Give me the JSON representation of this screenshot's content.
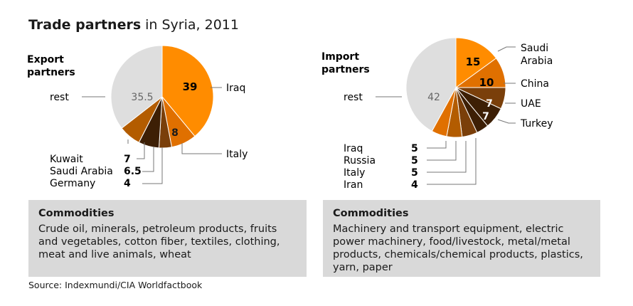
{
  "title": {
    "bold": "Trade partners",
    "light": "in Syria, 2011"
  },
  "colors": {
    "rest": "#dedede",
    "orange": "#ff8c00",
    "deep_orange": "#e07000",
    "brown": "#b35c00",
    "dark_brown": "#7a3f0a",
    "darkest": "#3d1f05"
  },
  "chart_data": [
    {
      "type": "pie",
      "title": "Export partners",
      "series": [
        {
          "name": "Iraq",
          "value": 39
        },
        {
          "name": "Italy",
          "value": 8
        },
        {
          "name": "Germany",
          "value": 4
        },
        {
          "name": "Saudi Arabia",
          "value": 6.5
        },
        {
          "name": "Kuwait",
          "value": 7
        },
        {
          "name": "rest",
          "value": 35.5
        }
      ]
    },
    {
      "type": "pie",
      "title": "Import partners",
      "series": [
        {
          "name": "Saudi Arabia",
          "value": 15
        },
        {
          "name": "China",
          "value": 10
        },
        {
          "name": "UAE",
          "value": 7
        },
        {
          "name": "Turkey",
          "value": 7
        },
        {
          "name": "Iran",
          "value": 4
        },
        {
          "name": "Italy",
          "value": 5
        },
        {
          "name": "Russia",
          "value": 5
        },
        {
          "name": "Iraq",
          "value": 5
        },
        {
          "name": "rest",
          "value": 42
        }
      ]
    }
  ],
  "export": {
    "heading_line1": "Export",
    "heading_line2": "partners",
    "rest_label": "rest",
    "rest_value": "35.5",
    "iraq_label": "Iraq",
    "iraq_value": "39",
    "italy_label": "Italy",
    "italy_value": "8",
    "list": [
      {
        "name": "Kuwait",
        "value": "7"
      },
      {
        "name": "Saudi Arabia",
        "value": "6.5"
      },
      {
        "name": "Germany",
        "value": "4"
      }
    ],
    "commodities_title": "Commodities",
    "commodities_text": "Crude oil, minerals, petroleum products, fruits and vegetables, cotton fiber, textiles, clothing, meat and live animals, wheat"
  },
  "import": {
    "heading_line1": "Import",
    "heading_line2": "partners",
    "rest_label": "rest",
    "rest_value": "42",
    "saudi_label_line1": "Saudi",
    "saudi_label_line2": "Arabia",
    "saudi_value": "15",
    "china_label": "China",
    "china_value": "10",
    "uae_label": "UAE",
    "uae_value": "7",
    "turkey_label": "Turkey",
    "turkey_value": "7",
    "list": [
      {
        "name": "Iraq",
        "value": "5"
      },
      {
        "name": "Russia",
        "value": "5"
      },
      {
        "name": "Italy",
        "value": "5"
      },
      {
        "name": "Iran",
        "value": "4"
      }
    ],
    "commodities_title": "Commodities",
    "commodities_text": "Machinery and transport equipment, electric power machinery, food/livestock, metal/metal products, chemicals/chemical products, plastics, yarn, paper"
  },
  "source": "Source: Indexmundi/CIA Worldfactbook"
}
